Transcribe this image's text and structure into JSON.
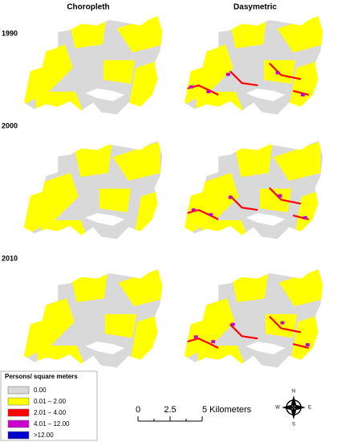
{
  "columns": [
    "Choropleth",
    "Dasymetric"
  ],
  "years": [
    "1990",
    "2000",
    "2010"
  ],
  "legend": {
    "title": "Persons/ square meters",
    "items": [
      {
        "label": "0.00",
        "color": "#d9d9d9"
      },
      {
        "label": "0.01 – 2.00",
        "color": "#ffff00"
      },
      {
        "label": "2.01 – 4.00",
        "color": "#ff0000"
      },
      {
        "label": "4.01 – 12.00",
        "color": "#cc00cc"
      },
      {
        "label": ">12.00",
        "color": "#0000cc"
      }
    ]
  },
  "scale_bar": {
    "labels": [
      "0",
      "2.5",
      "5 Kilometers"
    ]
  },
  "compass": {
    "n": "N",
    "e": "E",
    "s": "S",
    "w": "W"
  }
}
